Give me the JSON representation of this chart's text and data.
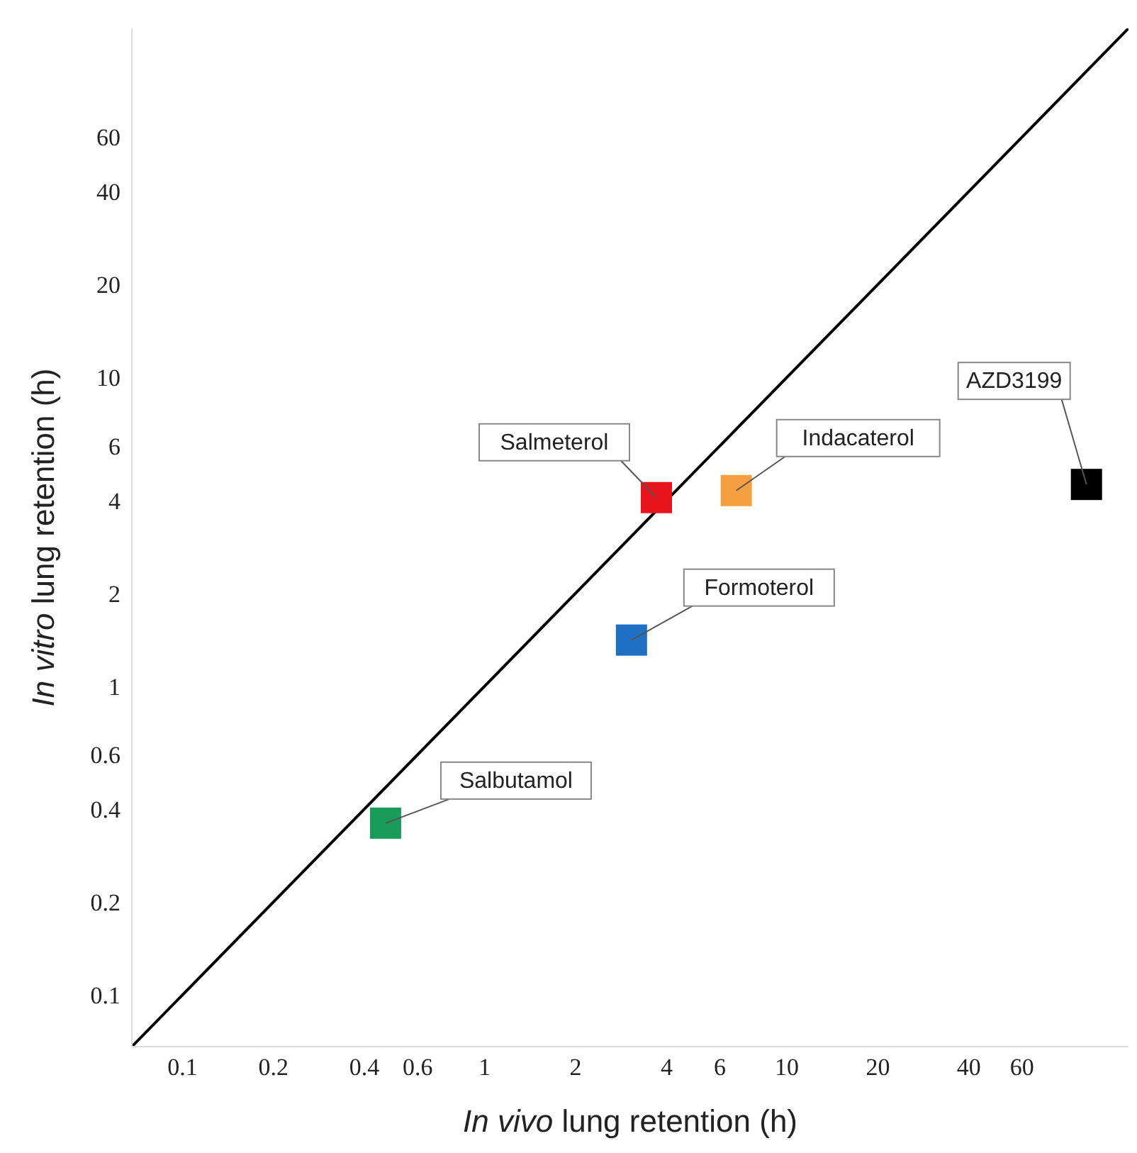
{
  "chart_data": {
    "type": "scatter",
    "xlabel": "In vivo lung retention (h)",
    "ylabel": "In vitro lung retention (h)",
    "log": "xy",
    "grid": false,
    "legend": false,
    "marker": "square",
    "xlim": [
      0.068,
      135
    ],
    "ylim": [
      0.068,
      135
    ],
    "xticks": [
      0.1,
      0.2,
      0.4,
      0.6,
      1,
      2,
      4,
      6,
      10,
      20,
      40,
      60
    ],
    "yticks": [
      0.1,
      0.2,
      0.4,
      0.6,
      1,
      2,
      4,
      6,
      10,
      20,
      40,
      60
    ],
    "series": [
      {
        "type": "line",
        "color": "#000000",
        "x": [
          0.068,
          135
        ],
        "values": [
          0.068,
          135
        ],
        "line_style": "solid",
        "marker": "none"
      },
      {
        "name": "Salbutamol",
        "color": "#1a9b5a",
        "x": [
          0.47
        ],
        "values": [
          0.36
        ]
      },
      {
        "name": "Formoterol",
        "color": "#1f6fc5",
        "x": [
          3.06
        ],
        "values": [
          1.41
        ]
      },
      {
        "name": "Salmeterol",
        "color": "#e8141b",
        "x": [
          3.7
        ],
        "values": [
          4.08
        ]
      },
      {
        "name": "Indacaterol",
        "color": "#f5a040",
        "x": [
          6.8
        ],
        "values": [
          4.3
        ]
      },
      {
        "name": "AZD3199",
        "color": "#000000",
        "x": [
          98
        ],
        "values": [
          4.5
        ]
      }
    ]
  }
}
